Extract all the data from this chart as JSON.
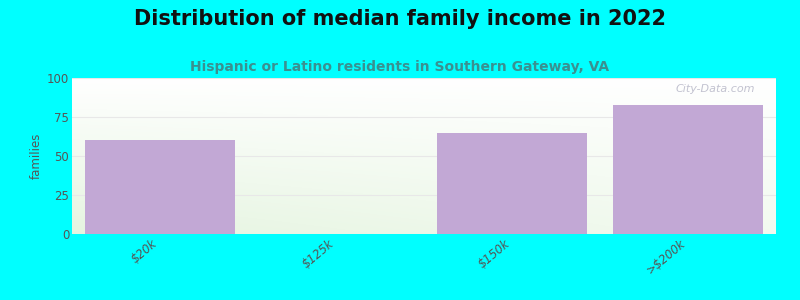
{
  "title": "Distribution of median family income in 2022",
  "subtitle": "Hispanic or Latino residents in Southern Gateway, VA",
  "categories": [
    "$20k",
    "$125k",
    "$150k",
    ">$200k"
  ],
  "values": [
    60,
    0,
    65,
    83
  ],
  "bar_color": "#c2a8d5",
  "background_outer": "#00ffff",
  "ylabel": "families",
  "ylim": [
    0,
    100
  ],
  "yticks": [
    0,
    25,
    50,
    75,
    100
  ],
  "title_fontsize": 15,
  "subtitle_fontsize": 10,
  "subtitle_color": "#3a9090",
  "watermark": "City-Data.com",
  "grid_color": "#e8e8e8"
}
